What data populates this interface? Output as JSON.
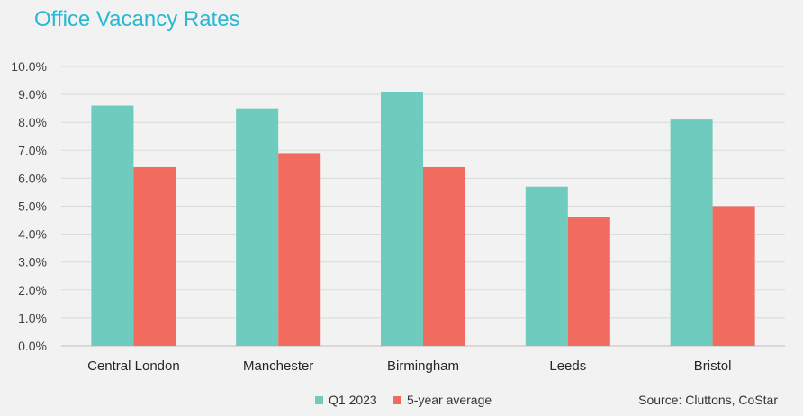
{
  "chart_data": {
    "type": "bar",
    "title": "Office Vacancy Rates",
    "categories": [
      "Central London",
      "Manchester",
      "Birmingham",
      "Leeds",
      "Bristol"
    ],
    "series": [
      {
        "name": "Q1 2023",
        "color": "#6ecbbd",
        "values": [
          8.6,
          8.5,
          9.1,
          5.7,
          8.1
        ]
      },
      {
        "name": "5-year average",
        "color": "#f16b5e",
        "values": [
          6.4,
          6.9,
          6.4,
          4.6,
          5.0
        ]
      }
    ],
    "ylim": [
      0,
      10
    ],
    "yticks": [
      "0.0%",
      "1.0%",
      "2.0%",
      "3.0%",
      "4.0%",
      "5.0%",
      "6.0%",
      "7.0%",
      "8.0%",
      "9.0%",
      "10.0%"
    ],
    "grid": true,
    "legend": "bottom",
    "source": "Source: Cluttons, CoStar"
  }
}
